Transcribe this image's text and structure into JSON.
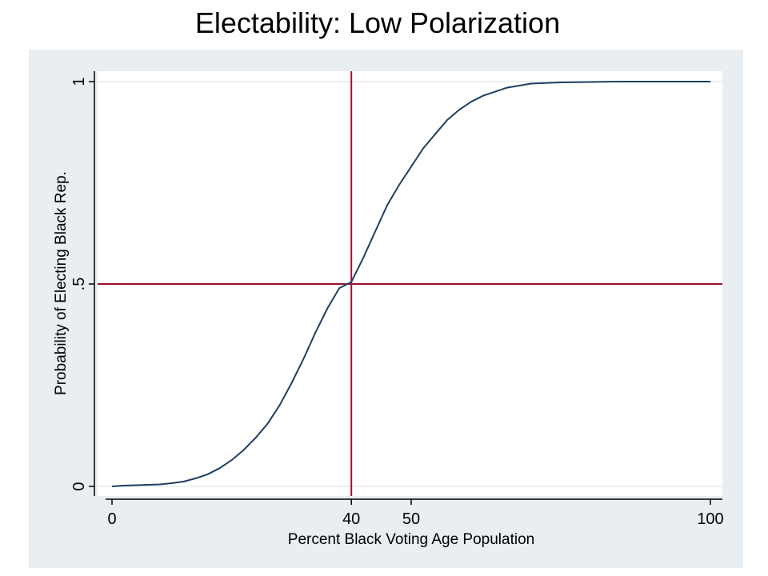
{
  "chart_data": {
    "type": "line",
    "title": "Electability: Low Polarization",
    "xlabel": "Percent Black Voting Age Population",
    "ylabel": "Probability of Electing Black Rep.",
    "xlim": [
      0,
      100
    ],
    "ylim": [
      0,
      1
    ],
    "x_ticks": [
      {
        "value": 0,
        "label": "0"
      },
      {
        "value": 40,
        "label": "40"
      },
      {
        "value": 50,
        "label": "50"
      },
      {
        "value": 100,
        "label": "100"
      }
    ],
    "y_ticks": [
      {
        "value": 0,
        "label": "0"
      },
      {
        "value": 0.5,
        "label": ".5"
      },
      {
        "value": 1,
        "label": "1"
      }
    ],
    "grid": true,
    "reference_lines": [
      {
        "axis": "x",
        "value": 40
      },
      {
        "axis": "y",
        "value": 0.5
      }
    ],
    "series": [
      {
        "x": [
          0,
          2,
          4,
          6,
          8,
          10,
          12,
          14,
          16,
          18,
          20,
          22,
          24,
          26,
          28,
          30,
          32,
          34,
          36,
          38,
          40,
          42,
          44,
          46,
          48,
          50,
          52,
          54,
          56,
          58,
          60,
          62,
          64,
          66,
          68,
          70,
          75,
          80,
          85,
          90,
          95,
          100
        ],
        "y": [
          0.0,
          0.002,
          0.003,
          0.004,
          0.005,
          0.008,
          0.012,
          0.02,
          0.03,
          0.045,
          0.065,
          0.09,
          0.12,
          0.155,
          0.2,
          0.255,
          0.315,
          0.38,
          0.44,
          0.49,
          0.505,
          0.565,
          0.63,
          0.695,
          0.745,
          0.79,
          0.835,
          0.87,
          0.905,
          0.93,
          0.95,
          0.965,
          0.975,
          0.985,
          0.99,
          0.995,
          0.998,
          0.999,
          1.0,
          1.0,
          1.0,
          1.0
        ]
      }
    ],
    "colors": {
      "line": "#1f3f63",
      "reference": "#a0102f",
      "grid": "#e6ebef",
      "background": "#e8eef2",
      "plot": "#ffffff"
    }
  }
}
